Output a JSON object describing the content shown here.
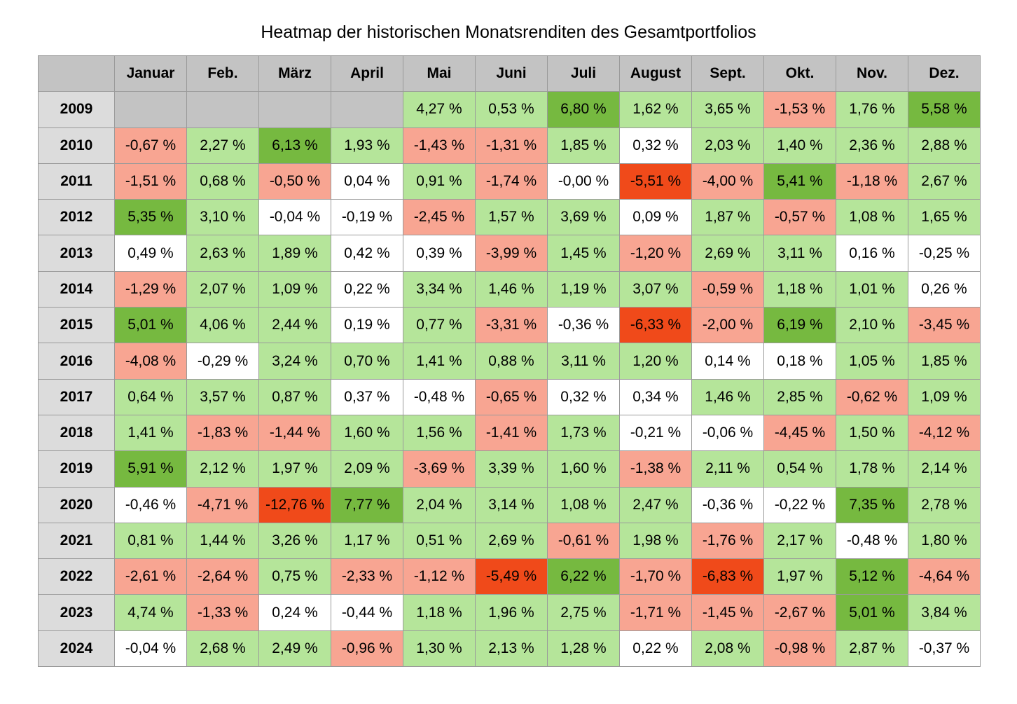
{
  "chart_data": {
    "type": "heatmap",
    "title": "Heatmap der historischen Monatsrenditen des Gesamtportfolios",
    "columns": [
      "Januar",
      "Feb.",
      "März",
      "April",
      "Mai",
      "Juni",
      "Juli",
      "August",
      "Sept.",
      "Okt.",
      "Nov.",
      "Dez."
    ],
    "rows": [
      {
        "year": "2009",
        "values": [
          null,
          null,
          null,
          null,
          4.27,
          0.53,
          6.8,
          1.62,
          3.65,
          -1.53,
          1.76,
          5.58
        ],
        "labels": [
          "",
          "",
          "",
          "",
          "4,27 %",
          "0,53 %",
          "6,80 %",
          "1,62 %",
          "3,65 %",
          "-1,53 %",
          "1,76 %",
          "5,58 %"
        ]
      },
      {
        "year": "2010",
        "values": [
          -0.67,
          2.27,
          6.13,
          1.93,
          -1.43,
          -1.31,
          1.85,
          0.32,
          2.03,
          1.4,
          2.36,
          2.88
        ],
        "labels": [
          "-0,67 %",
          "2,27 %",
          "6,13 %",
          "1,93 %",
          "-1,43 %",
          "-1,31 %",
          "1,85 %",
          "0,32 %",
          "2,03 %",
          "1,40 %",
          "2,36 %",
          "2,88 %"
        ]
      },
      {
        "year": "2011",
        "values": [
          -1.51,
          0.68,
          -0.5,
          0.04,
          0.91,
          -1.74,
          -0.0,
          -5.51,
          -4.0,
          5.41,
          -1.18,
          2.67
        ],
        "labels": [
          "-1,51 %",
          "0,68 %",
          "-0,50 %",
          "0,04 %",
          "0,91 %",
          "-1,74 %",
          "-0,00 %",
          "-5,51 %",
          "-4,00 %",
          "5,41 %",
          "-1,18 %",
          "2,67 %"
        ]
      },
      {
        "year": "2012",
        "values": [
          5.35,
          3.1,
          -0.04,
          -0.19,
          -2.45,
          1.57,
          3.69,
          0.09,
          1.87,
          -0.57,
          1.08,
          1.65
        ],
        "labels": [
          "5,35 %",
          "3,10 %",
          "-0,04 %",
          "-0,19 %",
          "-2,45 %",
          "1,57 %",
          "3,69 %",
          "0,09 %",
          "1,87 %",
          "-0,57 %",
          "1,08 %",
          "1,65 %"
        ]
      },
      {
        "year": "2013",
        "values": [
          0.49,
          2.63,
          1.89,
          0.42,
          0.39,
          -3.99,
          1.45,
          -1.2,
          2.69,
          3.11,
          0.16,
          -0.25
        ],
        "labels": [
          "0,49 %",
          "2,63 %",
          "1,89 %",
          "0,42 %",
          "0,39 %",
          "-3,99 %",
          "1,45 %",
          "-1,20 %",
          "2,69 %",
          "3,11 %",
          "0,16 %",
          "-0,25 %"
        ]
      },
      {
        "year": "2014",
        "values": [
          -1.29,
          2.07,
          1.09,
          0.22,
          3.34,
          1.46,
          1.19,
          3.07,
          -0.59,
          1.18,
          1.01,
          0.26
        ],
        "labels": [
          "-1,29 %",
          "2,07 %",
          "1,09 %",
          "0,22 %",
          "3,34 %",
          "1,46 %",
          "1,19 %",
          "3,07 %",
          "-0,59 %",
          "1,18 %",
          "1,01 %",
          "0,26 %"
        ]
      },
      {
        "year": "2015",
        "values": [
          5.01,
          4.06,
          2.44,
          0.19,
          0.77,
          -3.31,
          -0.36,
          -6.33,
          -2.0,
          6.19,
          2.1,
          -3.45
        ],
        "labels": [
          "5,01 %",
          "4,06 %",
          "2,44 %",
          "0,19 %",
          "0,77 %",
          "-3,31 %",
          "-0,36 %",
          "-6,33 %",
          "-2,00 %",
          "6,19 %",
          "2,10 %",
          "-3,45 %"
        ]
      },
      {
        "year": "2016",
        "values": [
          -4.08,
          -0.29,
          3.24,
          0.7,
          1.41,
          0.88,
          3.11,
          1.2,
          0.14,
          0.18,
          1.05,
          1.85
        ],
        "labels": [
          "-4,08 %",
          "-0,29 %",
          "3,24 %",
          "0,70 %",
          "1,41 %",
          "0,88 %",
          "3,11 %",
          "1,20 %",
          "0,14 %",
          "0,18 %",
          "1,05 %",
          "1,85 %"
        ]
      },
      {
        "year": "2017",
        "values": [
          0.64,
          3.57,
          0.87,
          0.37,
          -0.48,
          -0.65,
          0.32,
          0.34,
          1.46,
          2.85,
          -0.62,
          1.09
        ],
        "labels": [
          "0,64 %",
          "3,57 %",
          "0,87 %",
          "0,37 %",
          "-0,48 %",
          "-0,65 %",
          "0,32 %",
          "0,34 %",
          "1,46 %",
          "2,85 %",
          "-0,62 %",
          "1,09 %"
        ]
      },
      {
        "year": "2018",
        "values": [
          1.41,
          -1.83,
          -1.44,
          1.6,
          1.56,
          -1.41,
          1.73,
          -0.21,
          -0.06,
          -4.45,
          1.5,
          -4.12
        ],
        "labels": [
          "1,41 %",
          "-1,83 %",
          "-1,44 %",
          "1,60 %",
          "1,56 %",
          "-1,41 %",
          "1,73 %",
          "-0,21 %",
          "-0,06 %",
          "-4,45 %",
          "1,50 %",
          "-4,12 %"
        ]
      },
      {
        "year": "2019",
        "values": [
          5.91,
          2.12,
          1.97,
          2.09,
          -3.69,
          3.39,
          1.6,
          -1.38,
          2.11,
          0.54,
          1.78,
          2.14
        ],
        "labels": [
          "5,91 %",
          "2,12 %",
          "1,97 %",
          "2,09 %",
          "-3,69 %",
          "3,39 %",
          "1,60 %",
          "-1,38 %",
          "2,11 %",
          "0,54 %",
          "1,78 %",
          "2,14 %"
        ]
      },
      {
        "year": "2020",
        "values": [
          -0.46,
          -4.71,
          -12.76,
          7.77,
          2.04,
          3.14,
          1.08,
          2.47,
          -0.36,
          -0.22,
          7.35,
          2.78
        ],
        "labels": [
          "-0,46 %",
          "-4,71 %",
          "-12,76 %",
          "7,77 %",
          "2,04 %",
          "3,14 %",
          "1,08 %",
          "2,47 %",
          "-0,36 %",
          "-0,22 %",
          "7,35 %",
          "2,78 %"
        ]
      },
      {
        "year": "2021",
        "values": [
          0.81,
          1.44,
          3.26,
          1.17,
          0.51,
          2.69,
          -0.61,
          1.98,
          -1.76,
          2.17,
          -0.48,
          1.8
        ],
        "labels": [
          "0,81 %",
          "1,44 %",
          "3,26 %",
          "1,17 %",
          "0,51 %",
          "2,69 %",
          "-0,61 %",
          "1,98 %",
          "-1,76 %",
          "2,17 %",
          "-0,48 %",
          "1,80 %"
        ]
      },
      {
        "year": "2022",
        "values": [
          -2.61,
          -2.64,
          0.75,
          -2.33,
          -1.12,
          -5.49,
          6.22,
          -1.7,
          -6.83,
          1.97,
          5.12,
          -4.64
        ],
        "labels": [
          "-2,61 %",
          "-2,64 %",
          "0,75 %",
          "-2,33 %",
          "-1,12 %",
          "-5,49 %",
          "6,22 %",
          "-1,70 %",
          "-6,83 %",
          "1,97 %",
          "5,12 %",
          "-4,64 %"
        ]
      },
      {
        "year": "2023",
        "values": [
          4.74,
          -1.33,
          0.24,
          -0.44,
          1.18,
          1.96,
          2.75,
          -1.71,
          -1.45,
          -2.67,
          5.01,
          3.84
        ],
        "labels": [
          "4,74 %",
          "-1,33 %",
          "0,24 %",
          "-0,44 %",
          "1,18 %",
          "1,96 %",
          "2,75 %",
          "-1,71 %",
          "-1,45 %",
          "-2,67 %",
          "5,01 %",
          "3,84 %"
        ]
      },
      {
        "year": "2024",
        "values": [
          -0.04,
          2.68,
          2.49,
          -0.96,
          1.3,
          2.13,
          1.28,
          0.22,
          2.08,
          -0.98,
          2.87,
          -0.37
        ],
        "labels": [
          "-0,04 %",
          "2,68 %",
          "2,49 %",
          "-0,96 %",
          "1,30 %",
          "2,13 %",
          "1,28 %",
          "0,22 %",
          "2,08 %",
          "-0,98 %",
          "2,87 %",
          "-0,37 %"
        ]
      }
    ],
    "color_scale": {
      "empty": "#c3c3c3",
      "neutral": "#ffffff",
      "positive": "#b5e59a",
      "strong_positive": "#76b940",
      "negative": "#f8a592",
      "strong_negative": "#f04a1a"
    },
    "thresholds": {
      "neutral_band": [
        -0.5,
        0.5
      ],
      "strong_positive_min": 5.0,
      "strong_negative_max": -5.0
    }
  }
}
